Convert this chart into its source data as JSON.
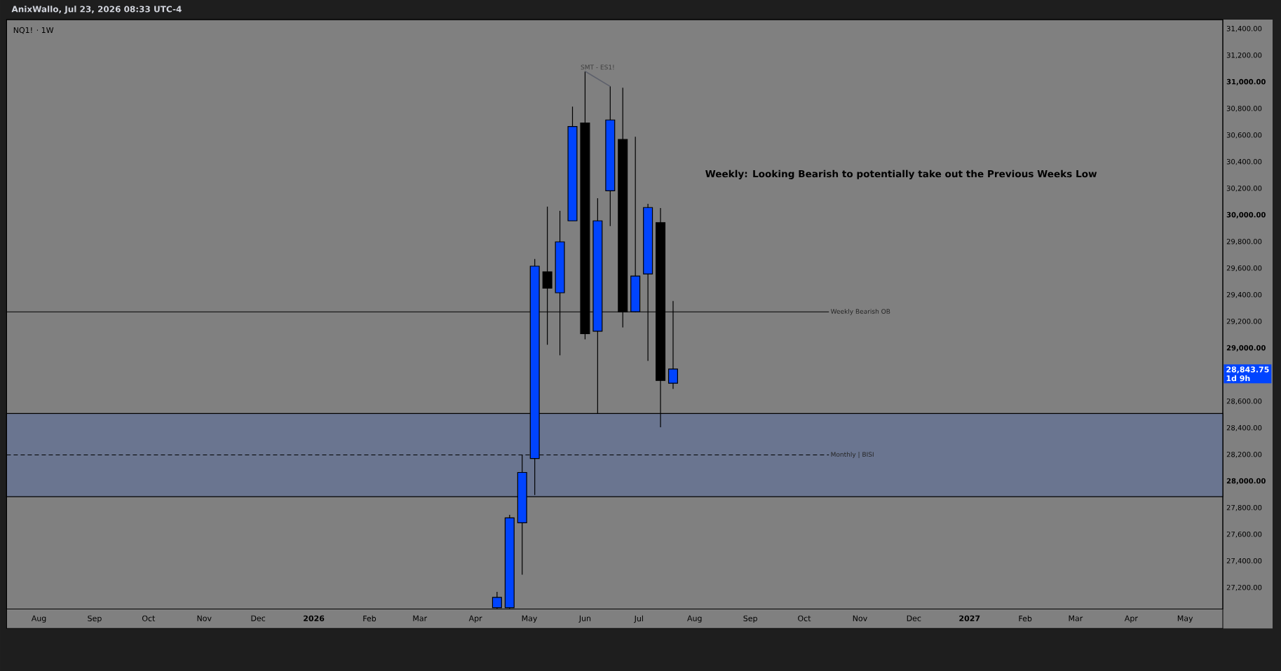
{
  "chart_data": {
    "type": "candlestick",
    "x": [
      "2026-04-13",
      "2026-04-20",
      "2026-04-27",
      "2026-05-04",
      "2026-05-11",
      "2026-05-18",
      "2026-05-25",
      "2026-06-01",
      "2026-06-08",
      "2026-06-15",
      "2026-06-22",
      "2026-06-29",
      "2026-07-06",
      "2026-07-13",
      "2026-07-20"
    ],
    "ohlc": [
      [
        27050,
        27170,
        27045,
        27128
      ],
      [
        27050,
        27748,
        27045,
        27725
      ],
      [
        27689,
        28198,
        27298,
        28067
      ],
      [
        28172,
        29671,
        27897,
        29617
      ],
      [
        29575,
        30065,
        29026,
        29452
      ],
      [
        29417,
        30033,
        28947,
        29800
      ],
      [
        29958,
        30816,
        29958,
        30667
      ],
      [
        30693,
        31082,
        29067,
        29110
      ],
      [
        29128,
        30128,
        28510,
        29958
      ],
      [
        30184,
        30968,
        29919,
        30716
      ],
      [
        30569,
        30958,
        29157,
        29273
      ],
      [
        29275,
        30590,
        29270,
        29543
      ],
      [
        29558,
        30086,
        28905,
        30058
      ],
      [
        29944,
        30054,
        28406,
        28758
      ],
      [
        28737,
        29355,
        28695,
        28843.75
      ]
    ],
    "colors": [
      "#0044ff",
      "#0044ff",
      "#0044ff",
      "#0044ff",
      "#000000",
      "#0044ff",
      "#0044ff",
      "#000000",
      "#0044ff",
      "#0044ff",
      "#000000",
      "#0044ff",
      "#0044ff",
      "#000000",
      "#0044ff"
    ],
    "series": [
      {
        "type": "line",
        "x": [
          "2026-06-01",
          "2026-06-15"
        ],
        "values": [
          31082,
          30968
        ],
        "color": "#5d606b"
      }
    ],
    "xlim": [
      "2025-07-14",
      "2027-05-22"
    ],
    "xticks": [
      {
        "value": "2025-08-01",
        "label": "Aug"
      },
      {
        "value": "2025-09-01",
        "label": "Sep"
      },
      {
        "value": "2025-10-01",
        "label": "Oct"
      },
      {
        "value": "2025-11-01",
        "label": "Nov"
      },
      {
        "value": "2025-12-01",
        "label": "Dec"
      },
      {
        "value": "2026-01-01",
        "label": "2026"
      },
      {
        "value": "2026-02-01",
        "label": "Feb"
      },
      {
        "value": "2026-03-01",
        "label": "Mar"
      },
      {
        "value": "2026-04-01",
        "label": "Apr"
      },
      {
        "value": "2026-05-01",
        "label": "May"
      },
      {
        "value": "2026-06-01",
        "label": "Jun"
      },
      {
        "value": "2026-07-01",
        "label": "Jul"
      },
      {
        "value": "2026-08-01",
        "label": "Aug"
      },
      {
        "value": "2026-09-01",
        "label": "Sep"
      },
      {
        "value": "2026-10-01",
        "label": "Oct"
      },
      {
        "value": "2026-11-01",
        "label": "Nov"
      },
      {
        "value": "2026-12-01",
        "label": "Dec"
      },
      {
        "value": "2027-01-01",
        "label": "2027"
      },
      {
        "value": "2027-02-01",
        "label": "Feb"
      },
      {
        "value": "2027-03-01",
        "label": "Mar"
      },
      {
        "value": "2027-04-01",
        "label": "Apr"
      },
      {
        "value": "2027-05-01",
        "label": "May"
      }
    ],
    "ylim": [
      27040,
      31470
    ],
    "yticks": [
      {
        "value": 27200,
        "label": "27,200.00"
      },
      {
        "value": 27400,
        "label": "27,400.00"
      },
      {
        "value": 27600,
        "label": "27,600.00"
      },
      {
        "value": 27800,
        "label": "27,800.00"
      },
      {
        "value": 28000,
        "label": "28,000.00"
      },
      {
        "value": 28200,
        "label": "28,200.00"
      },
      {
        "value": 28400,
        "label": "28,400.00"
      },
      {
        "value": 28600,
        "label": "28,600.00"
      },
      {
        "value": 29000,
        "label": "29,000.00"
      },
      {
        "value": 29200,
        "label": "29,200.00"
      },
      {
        "value": 29400,
        "label": "29,400.00"
      },
      {
        "value": 29600,
        "label": "29,600.00"
      },
      {
        "value": 29800,
        "label": "29,800.00"
      },
      {
        "value": 30000,
        "label": "30,000.00"
      },
      {
        "value": 30200,
        "label": "30,200.00"
      },
      {
        "value": 30400,
        "label": "30,400.00"
      },
      {
        "value": 30600,
        "label": "30,600.00"
      },
      {
        "value": 30800,
        "label": "30,800.00"
      },
      {
        "value": 31000,
        "label": "31,000.00"
      },
      {
        "value": 31200,
        "label": "31,200.00"
      },
      {
        "value": 31400,
        "label": "31,400.00"
      }
    ],
    "bands": [
      {
        "axis": "y",
        "from": 27885,
        "to": 28510,
        "color": "#6a7590"
      }
    ],
    "ref_lines": [
      {
        "axis": "y",
        "value": 29273,
        "label": "Weekly Bearish OB",
        "color": "#000000"
      },
      {
        "axis": "y",
        "value": 28198,
        "label": "Monthly | BISI",
        "color": "#000000",
        "line_style": "dashed"
      }
    ],
    "annotations": [
      "AnixWallo, Jul 23, 2026 08:33 UTC-4",
      "NQ1! · 1W",
      "Weekly: Looking Bearish to potentially take out the Previous Weeks Low",
      "SMT - ES1!",
      "28,843.75",
      "1d 9h"
    ]
  }
}
